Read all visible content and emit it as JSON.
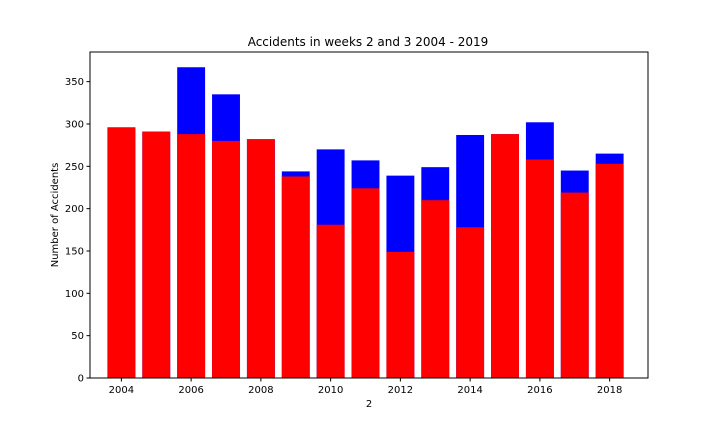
{
  "chart_data": {
    "type": "bar",
    "title": "Accidents in weeks 2 and 3 2004 - 2019",
    "xlabel": "2",
    "ylabel": "Number of Accidents",
    "x": [
      2004,
      2005,
      2006,
      2007,
      2008,
      2009,
      2010,
      2011,
      2012,
      2013,
      2014,
      2015,
      2016,
      2017,
      2018
    ],
    "xlim": [
      2003.1,
      2019.1
    ],
    "ylim": [
      0,
      385
    ],
    "x_ticks": [
      "2004",
      "2006",
      "2008",
      "2010",
      "2012",
      "2014",
      "2016",
      "2018"
    ],
    "y_ticks": [
      "0",
      "50",
      "100",
      "150",
      "200",
      "250",
      "300",
      "350"
    ],
    "grid": false,
    "series": [
      {
        "color": "#0000ff",
        "values": [
          296,
          291,
          367,
          335,
          282,
          244,
          270,
          257,
          239,
          249,
          287,
          288,
          302,
          245,
          265
        ]
      },
      {
        "color": "#ff0000",
        "values": [
          296,
          291,
          288,
          280,
          282,
          238,
          181,
          224,
          149,
          210,
          178,
          288,
          258,
          219,
          253
        ]
      }
    ]
  }
}
